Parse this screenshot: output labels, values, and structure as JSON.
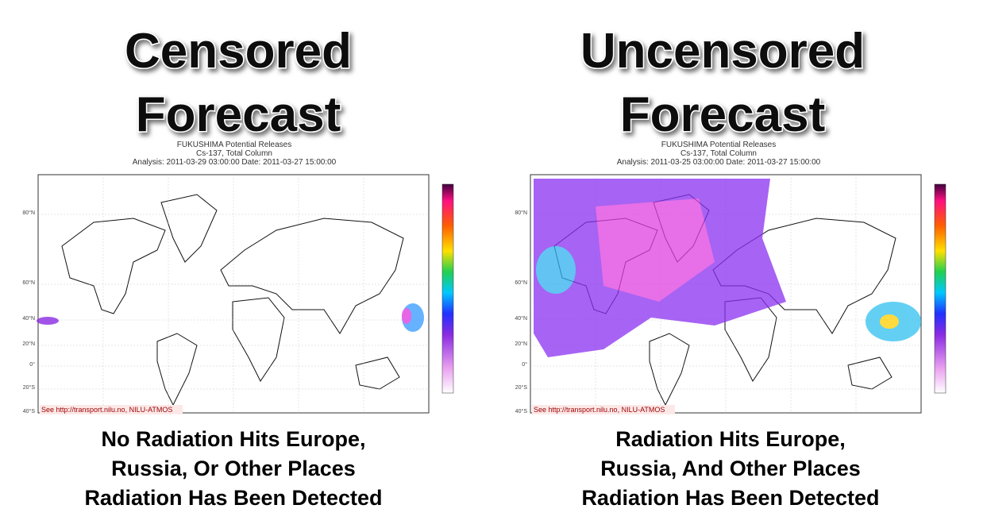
{
  "panels": [
    {
      "headline": [
        "Censored",
        "Forecast"
      ],
      "plot_title": [
        "FUKUSHIMA Potential Releases",
        "Cs-137, Total Column",
        "Analysis: 2011-03-29  03:00:00  Date: 2011-03-27  15:00:00"
      ],
      "lat_labels": [
        "80°N",
        "60°N",
        "40°N",
        "20°N",
        "0°",
        "20°S",
        "40°S"
      ],
      "credit": "See http://transport.nilu.no, NILU-ATMOS",
      "caption": [
        "No Radiation Hits Europe,",
        "Russia, Or Other Places",
        "Radiation Has Been Detected"
      ]
    },
    {
      "headline": [
        "Uncensored",
        "Forecast"
      ],
      "plot_title": [
        "FUKUSHIMA Potential Releases",
        "Cs-137, Total Column",
        "Analysis: 2011-03-25  03:00:00  Date: 2011-03-27  15:00:00"
      ],
      "lat_labels": [
        "80°N",
        "60°N",
        "40°N",
        "20°N",
        "0°",
        "20°S",
        "40°S"
      ],
      "credit": "See http://transport.nilu.no, NILU-ATMOS",
      "caption": [
        "Radiation Hits Europe,",
        "Russia, And Other Places",
        "Radiation Has Been Detected"
      ]
    }
  ]
}
